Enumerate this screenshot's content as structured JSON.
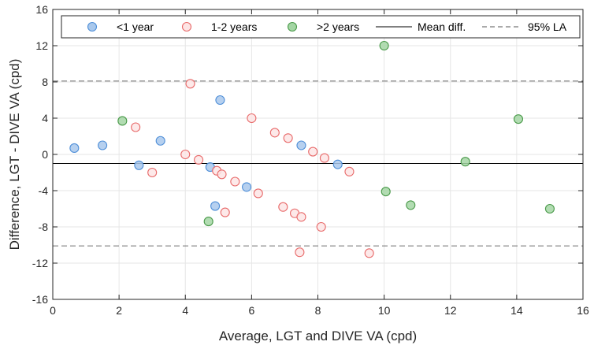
{
  "chart_data": {
    "type": "scatter",
    "title": "",
    "xlabel": "Average, LGT and DIVE VA (cpd)",
    "ylabel": "Difference, LGT - DIVE VA (cpd)",
    "xlim": [
      0,
      16
    ],
    "ylim": [
      -16,
      16
    ],
    "x_ticks": [
      "0",
      "2",
      "4",
      "6",
      "8",
      "10",
      "12",
      "14",
      "16"
    ],
    "y_ticks": [
      "16",
      "12",
      "8",
      "4",
      "0",
      "-4",
      "-8",
      "-12",
      "-16"
    ],
    "grid": true,
    "legend_position": "top",
    "series": [
      {
        "name": "<1 year",
        "color": "#a9c8ec",
        "edge": "#4f8fd8",
        "points": [
          [
            0.65,
            0.7
          ],
          [
            1.5,
            1.0
          ],
          [
            2.6,
            -1.2
          ],
          [
            3.25,
            1.5
          ],
          [
            4.75,
            -1.4
          ],
          [
            4.9,
            -5.7
          ],
          [
            5.05,
            6.0
          ],
          [
            5.85,
            -3.6
          ],
          [
            7.5,
            1.0
          ],
          [
            8.6,
            -1.1
          ]
        ]
      },
      {
        "name": "1-2 years",
        "color": "#fde5e5",
        "edge": "#e86a6a",
        "points": [
          [
            2.5,
            3.0
          ],
          [
            3.0,
            -2.0
          ],
          [
            4.0,
            0.0
          ],
          [
            4.15,
            7.8
          ],
          [
            4.4,
            -0.6
          ],
          [
            4.95,
            -1.8
          ],
          [
            5.1,
            -2.2
          ],
          [
            5.2,
            -6.4
          ],
          [
            5.5,
            -3.0
          ],
          [
            6.0,
            4.0
          ],
          [
            6.2,
            -4.3
          ],
          [
            6.7,
            2.4
          ],
          [
            6.95,
            -5.8
          ],
          [
            7.1,
            1.8
          ],
          [
            7.3,
            -6.5
          ],
          [
            7.45,
            -10.8
          ],
          [
            7.5,
            -6.9
          ],
          [
            7.85,
            0.3
          ],
          [
            8.1,
            -8.0
          ],
          [
            8.2,
            -0.4
          ],
          [
            8.95,
            -1.9
          ],
          [
            9.55,
            -10.9
          ]
        ]
      },
      {
        "name": ">2 years",
        "color": "#a4d6a4",
        "edge": "#4a9a4a",
        "points": [
          [
            2.1,
            3.7
          ],
          [
            4.7,
            -7.4
          ],
          [
            10.0,
            12.0
          ],
          [
            10.05,
            -4.1
          ],
          [
            10.8,
            -5.6
          ],
          [
            12.45,
            -0.8
          ],
          [
            14.05,
            3.9
          ],
          [
            15.0,
            -6.0
          ]
        ]
      }
    ],
    "mean_diff": -1.0,
    "loa_upper": 8.1,
    "loa_lower": -10.1,
    "legend": {
      "mean_label": "Mean diff.",
      "loa_label": "95% LA"
    }
  }
}
